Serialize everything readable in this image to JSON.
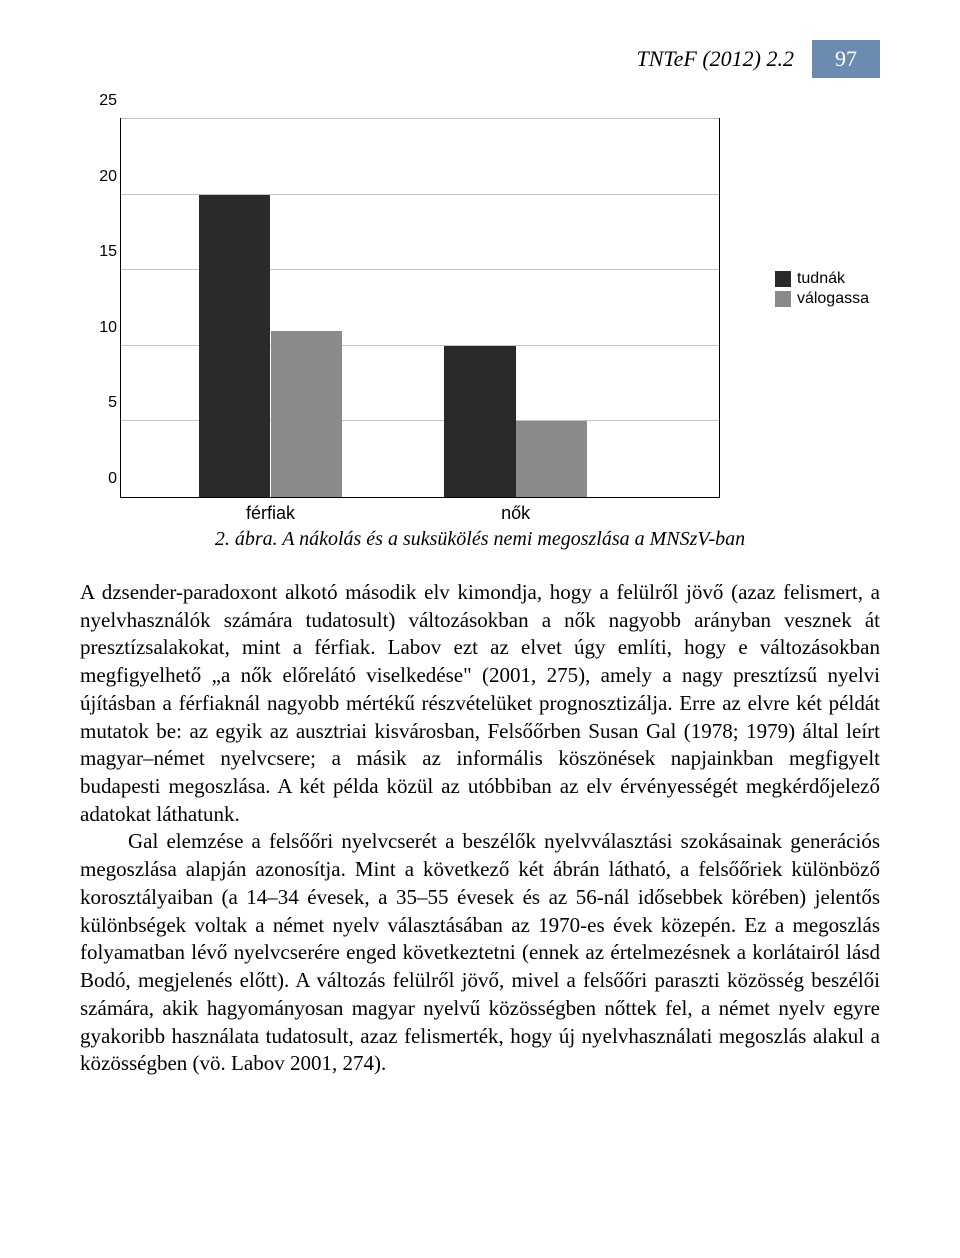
{
  "header": {
    "journal": "TNTeF (2012) 2.2",
    "page_number": "97"
  },
  "chart": {
    "type": "grouped-bar",
    "ylim": [
      0,
      25
    ],
    "ytick_step": 5,
    "yticks": [
      0,
      5,
      10,
      15,
      20,
      25
    ],
    "grid_color": "#c4c4c4",
    "border_color": "#000000",
    "background_color": "#ffffff",
    "axis_fontsize": 16,
    "categories": [
      "férfiak",
      "nők"
    ],
    "series": [
      {
        "name": "tudnák",
        "color": "#2a2a2a",
        "values": [
          20,
          10
        ]
      },
      {
        "name": "válogassa",
        "color": "#8a8a8a",
        "values": [
          11,
          5
        ]
      }
    ],
    "bar_width_pct": 12,
    "group_positions_pct": [
      25,
      66
    ],
    "legend": {
      "position": "right",
      "fontsize": 16,
      "items": [
        {
          "swatch": "#2a2a2a",
          "label": "tudnák"
        },
        {
          "swatch": "#8a8a8a",
          "label": "válogassa"
        }
      ]
    }
  },
  "caption": "2. ábra. A nákolás és a suksükölés nemi megoszlása a MNSzV-ban",
  "paragraphs": [
    "A dzsender-paradoxont alkotó második elv kimondja, hogy a felülről jövő (azaz felismert, a nyelvhasználók számára tudatosult) változásokban a nők nagyobb arányban vesznek át presztízsalakokat, mint a férfiak. Labov ezt az elvet úgy említi, hogy e változásokban megfigyelhető „a nők előrelátó viselkedése\" (2001, 275), amely a nagy presztízsű nyelvi újításban a férfiaknál nagyobb mértékű részvételüket prognosztizálja. Erre az elvre két példát mutatok be: az egyik az ausztriai kisvárosban, Felsőőrben Susan Gal (1978; 1979) által leírt magyar–német nyelvcsere; a másik az informális köszönések napjainkban megfigyelt budapesti megoszlása. A két példa közül az utóbbiban az elv érvényességét megkérdőjelező adatokat láthatunk.",
    "Gal elemzése a felsőőri nyelvcserét a beszélők nyelvválasztási szokásainak generációs megoszlása alapján azonosítja. Mint a következő két ábrán látható, a felsőőriek különböző korosztályaiban (a 14–34 évesek, a 35–55 évesek és az 56-nál idősebbek körében) jelentős különbségek voltak a német nyelv választásában az 1970-es évek közepén. Ez a megoszlás folyamatban lévő nyelvcserére enged következtetni (ennek az értelmezésnek a korlátairól lásd Bodó, megjelenés előtt). A változás felülről jövő, mivel a felsőőri paraszti közösség beszélői számára, akik hagyományosan magyar nyelvű közösségben nőttek fel, a német nyelv egyre gyakoribb használata tudatosult, azaz felismerték, hogy új nyelvhasználati megoszlás alakul a közösségben (vö. Labov 2001, 274)."
  ]
}
